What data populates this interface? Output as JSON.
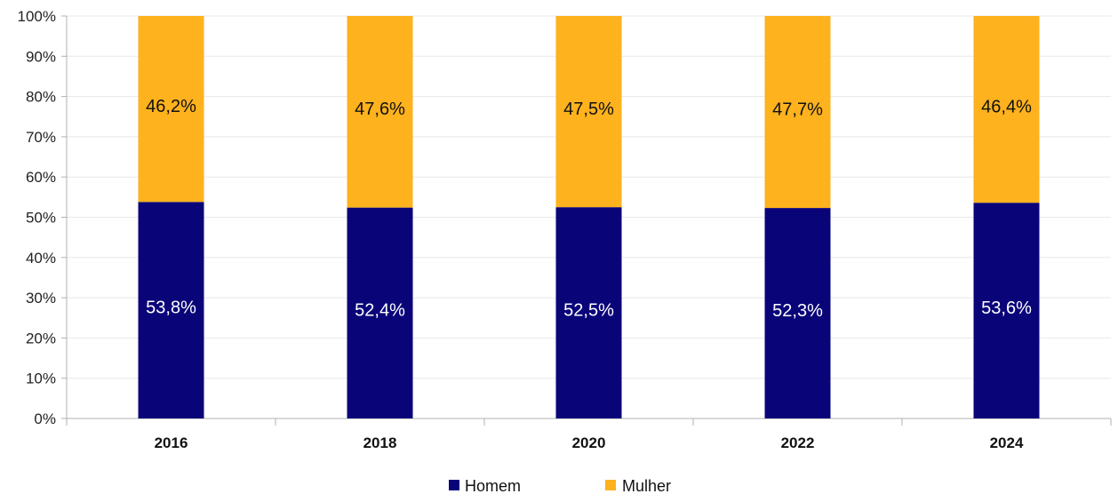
{
  "colors": {
    "homem": "#0a0479",
    "mulher": "#fdb21e"
  },
  "chart_data": {
    "type": "bar",
    "stacked": true,
    "categories": [
      "2016",
      "2018",
      "2020",
      "2022",
      "2024"
    ],
    "series": [
      {
        "name": "Homem",
        "values": [
          53.8,
          52.4,
          52.5,
          52.3,
          53.6
        ],
        "labels": [
          "53,8%",
          "52,4%",
          "52,5%",
          "52,3%",
          "53,6%"
        ],
        "color": "#0a0479"
      },
      {
        "name": "Mulher",
        "values": [
          46.2,
          47.6,
          47.5,
          47.7,
          46.4
        ],
        "labels": [
          "46,2%",
          "47,6%",
          "47,5%",
          "47,7%",
          "46,4%"
        ],
        "color": "#fdb21e"
      }
    ],
    "ylim": [
      0,
      100
    ],
    "yticks": [
      "0%",
      "10%",
      "20%",
      "30%",
      "40%",
      "50%",
      "60%",
      "70%",
      "80%",
      "90%",
      "100%"
    ],
    "grid": true,
    "legend_position": "bottom-center"
  }
}
